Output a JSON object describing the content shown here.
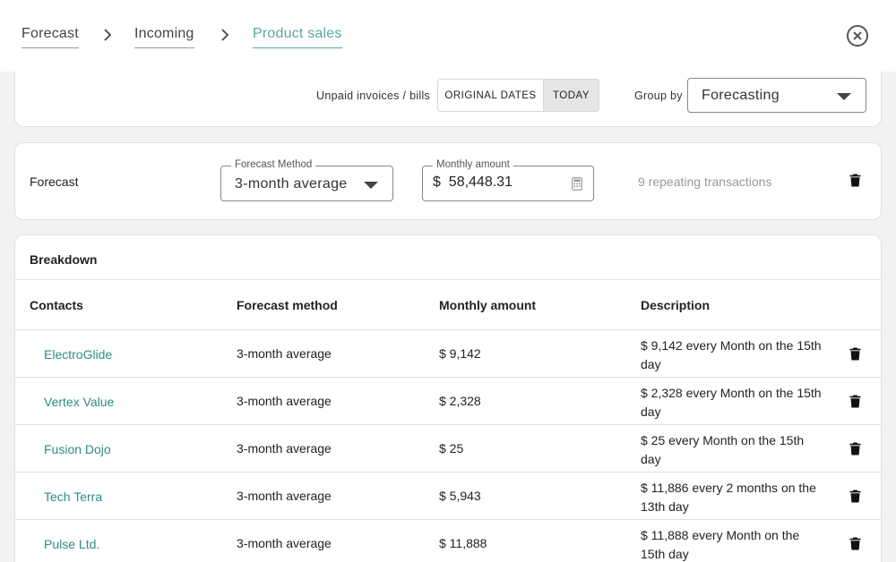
{
  "breadcrumb": {
    "items": [
      "Forecast",
      "Incoming",
      "Product sales"
    ]
  },
  "icons": {
    "separator": "chevron-right-icon",
    "close": "close-circle-icon",
    "dropdown": "caret-down-icon",
    "calculator": "calculator-icon",
    "delete": "trash-icon"
  },
  "colors": {
    "accent": "#5aa9a0",
    "link": "#2e8b85",
    "muted": "#999999"
  },
  "filters": {
    "unpaid_label": "Unpaid invoices / bills",
    "toggle": {
      "options": [
        "ORIGINAL DATES",
        "TODAY"
      ],
      "selected": "TODAY"
    },
    "group_by_label": "Group by",
    "group_by_value": "Forecasting"
  },
  "forecast": {
    "label": "Forecast",
    "method_label": "Forecast Method",
    "method_value": "3-month average",
    "amount_label": "Monthly amount",
    "amount_value": "$  58,448.31",
    "repeating_text": "9 repeating transactions"
  },
  "breakdown": {
    "title": "Breakdown",
    "columns": [
      "Contacts",
      "Forecast method",
      "Monthly amount",
      "Description"
    ],
    "rows": [
      {
        "contact": "ElectroGlide",
        "method": "3-month average",
        "amount": "$ 9,142",
        "description": "$ 9,142 every Month on the 15th day"
      },
      {
        "contact": "Vertex Value",
        "method": "3-month average",
        "amount": "$ 2,328",
        "description": "$ 2,328 every Month on the 15th day"
      },
      {
        "contact": "Fusion Dojo",
        "method": "3-month average",
        "amount": "$ 25",
        "description": "$ 25 every Month on the 15th day"
      },
      {
        "contact": "Tech Terra",
        "method": "3-month average",
        "amount": "$ 5,943",
        "description": "$ 11,886 every 2 months on the 13th day"
      },
      {
        "contact": "Pulse Ltd.",
        "method": "3-month average",
        "amount": "$ 11,888",
        "description": "$ 11,888 every Month on the 15th day"
      }
    ]
  }
}
